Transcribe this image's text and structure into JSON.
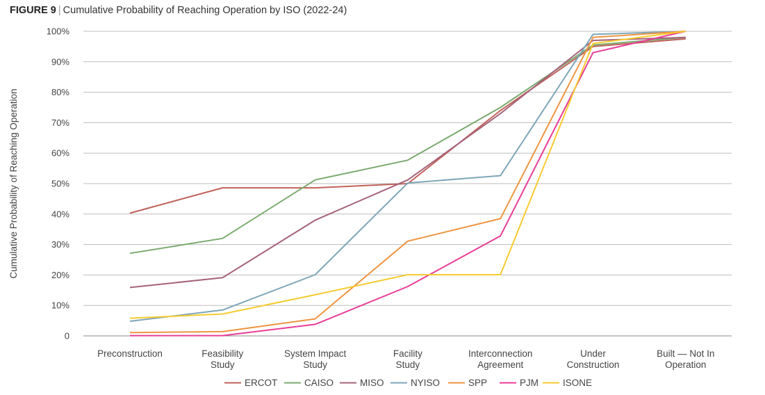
{
  "figure": {
    "label": "FIGURE 9",
    "separator": "|",
    "title": "Cumulative Probability of Reaching Operation by ISO (2022-24)"
  },
  "chart_data": {
    "type": "line",
    "title": "Cumulative Probability of Reaching Operation by ISO (2022-24)",
    "ylabel": "Cumulative Probability of Reaching Operation",
    "xlabel": "",
    "ylim": [
      0,
      100
    ],
    "grid": true,
    "legend": "bottom",
    "categories": [
      [
        "Preconstruction"
      ],
      [
        "Feasibility",
        "Study"
      ],
      [
        "System Impact",
        "Study"
      ],
      [
        "Facility",
        "Study"
      ],
      [
        "Interconnection",
        "Agreement"
      ],
      [
        "Under",
        "Construction"
      ],
      [
        "Built — Not In",
        "Operation"
      ]
    ],
    "yticks": [
      {
        "value": 0,
        "label": "0"
      },
      {
        "value": 10,
        "label": "10%"
      },
      {
        "value": 20,
        "label": "20%"
      },
      {
        "value": 30,
        "label": "30%"
      },
      {
        "value": 40,
        "label": "40%"
      },
      {
        "value": 50,
        "label": "50%"
      },
      {
        "value": 60,
        "label": "60%"
      },
      {
        "value": 70,
        "label": "70%"
      },
      {
        "value": 80,
        "label": "80%"
      },
      {
        "value": 90,
        "label": "90%"
      },
      {
        "value": 100,
        "label": "100%"
      }
    ],
    "series": [
      {
        "name": "ERCOT",
        "color": "#c0625a",
        "values": [
          40.3,
          48.6,
          48.6,
          50.0,
          74.0,
          95.0,
          97.5
        ]
      },
      {
        "name": "CAISO",
        "color": "#7aaa6e",
        "values": [
          27.1,
          32.0,
          51.2,
          57.7,
          75.0,
          95.5,
          98.0
        ]
      },
      {
        "name": "MISO",
        "color": "#a5627a",
        "values": [
          15.9,
          19.1,
          38.0,
          51.2,
          73.0,
          97.0,
          98.0
        ]
      },
      {
        "name": "NYISO",
        "color": "#7ea6b8",
        "values": [
          4.8,
          8.5,
          20.1,
          50.2,
          52.6,
          99.0,
          100.0
        ]
      },
      {
        "name": "SPP",
        "color": "#ee9440",
        "values": [
          1.1,
          1.4,
          5.6,
          31.1,
          38.5,
          98.0,
          100.0
        ]
      },
      {
        "name": "PJM",
        "color": "#e83c96",
        "values": [
          0.1,
          0.1,
          3.8,
          16.2,
          32.8,
          93.0,
          100.0
        ]
      },
      {
        "name": "ISONE",
        "color": "#f6cb2e",
        "values": [
          5.8,
          7.2,
          13.5,
          20.1,
          20.1,
          96.0,
          100.0
        ]
      }
    ]
  }
}
